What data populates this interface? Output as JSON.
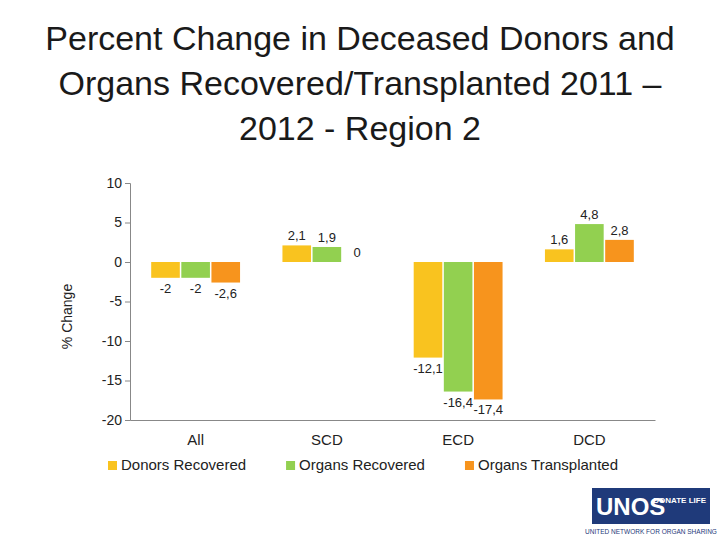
{
  "chart_data": {
    "type": "bar",
    "title": "Percent Change in Deceased Donors and Organs Recovered/Transplanted 2011 – 2012 - Region 2",
    "y_label": "% Change",
    "categories": [
      "All",
      "SCD",
      "ECD",
      "DCD"
    ],
    "series": [
      {
        "name": "Donors Recovered",
        "color": "#f9c31f",
        "values": [
          -2,
          2.1,
          -12.1,
          1.6
        ],
        "value_labels": [
          "-2",
          "2,1",
          "-12,1",
          "1,6"
        ]
      },
      {
        "name": "Organs Recovered",
        "color": "#92d050",
        "values": [
          -2,
          1.9,
          -16.4,
          4.8
        ],
        "value_labels": [
          "-2",
          "1,9",
          "-16,4",
          "4,8"
        ]
      },
      {
        "name": "Organs Transplanted",
        "color": "#f7941d",
        "values": [
          -2.6,
          0,
          -17.4,
          2.8
        ],
        "value_labels": [
          "-2,6",
          "0",
          "-17,4",
          "2,8"
        ]
      }
    ],
    "ylim": [
      -20,
      10
    ],
    "yticks": [
      -20,
      -15,
      -10,
      -5,
      0,
      5,
      10
    ],
    "grid": false,
    "legend": "bottom",
    "data_labels": true,
    "annotations": [
      "UNOS",
      "DONATE LIFE",
      "UNITED NETWORK FOR ORGAN SHARING"
    ]
  }
}
